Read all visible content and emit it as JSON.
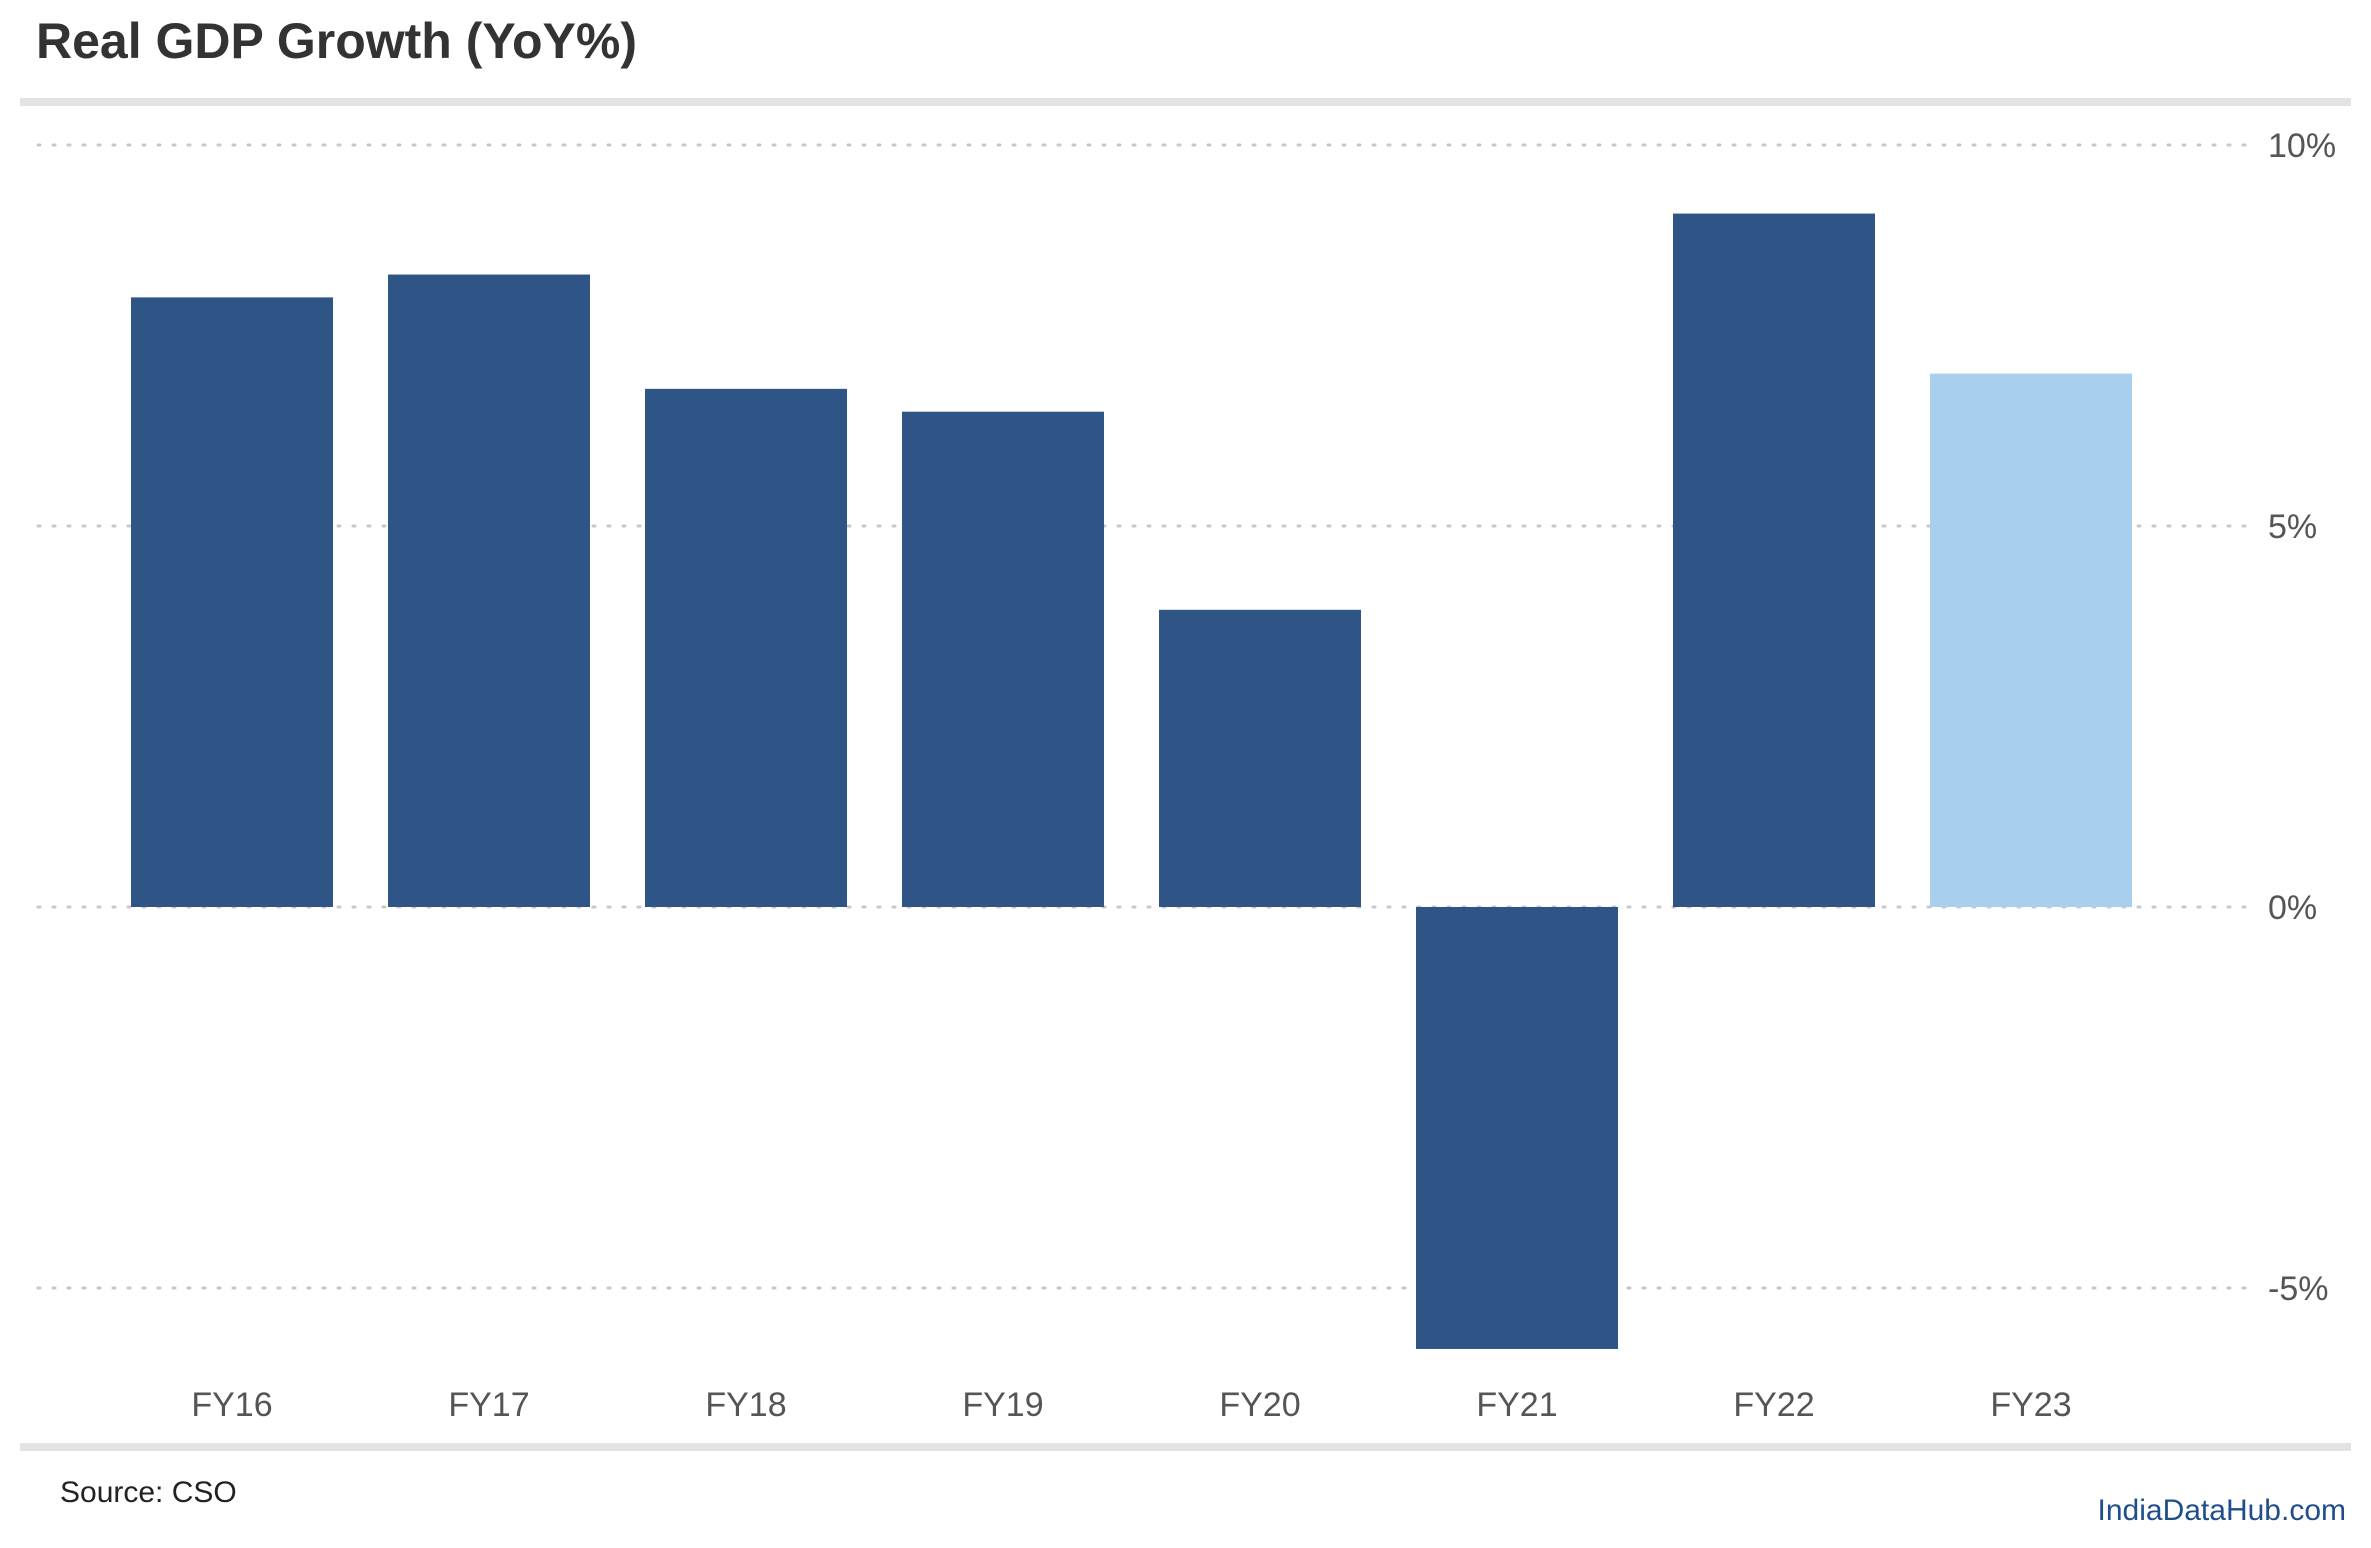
{
  "header": {
    "title": "Real GDP Growth (YoY%)"
  },
  "footer": {
    "source": "Source: CSO",
    "brand": "IndiaDataHub.com"
  },
  "colors": {
    "bar": "#2e5586",
    "bar_highlight": "#a9cfee",
    "grid": "#c8c8c8",
    "tick_text": "#555555",
    "title": "#333333",
    "brand": "#1f4e8c"
  },
  "chart_data": {
    "type": "bar",
    "title": "Real GDP Growth (YoY%)",
    "xlabel": "",
    "ylabel": "",
    "categories": [
      "FY16",
      "FY17",
      "FY18",
      "FY19",
      "FY20",
      "FY21",
      "FY22",
      "FY23"
    ],
    "values": [
      8.0,
      8.3,
      6.8,
      6.5,
      3.9,
      -5.8,
      9.1,
      7.0
    ],
    "highlight": [
      false,
      false,
      false,
      false,
      false,
      false,
      false,
      true
    ],
    "ylim": [
      -6.0,
      10.0
    ],
    "yticks": [
      10,
      5,
      0,
      -5
    ],
    "ytick_labels": [
      "10%",
      "5%",
      "0%",
      "-5%"
    ],
    "y_axis_side": "right",
    "grid": "horizontal dotted",
    "legend": "none"
  }
}
